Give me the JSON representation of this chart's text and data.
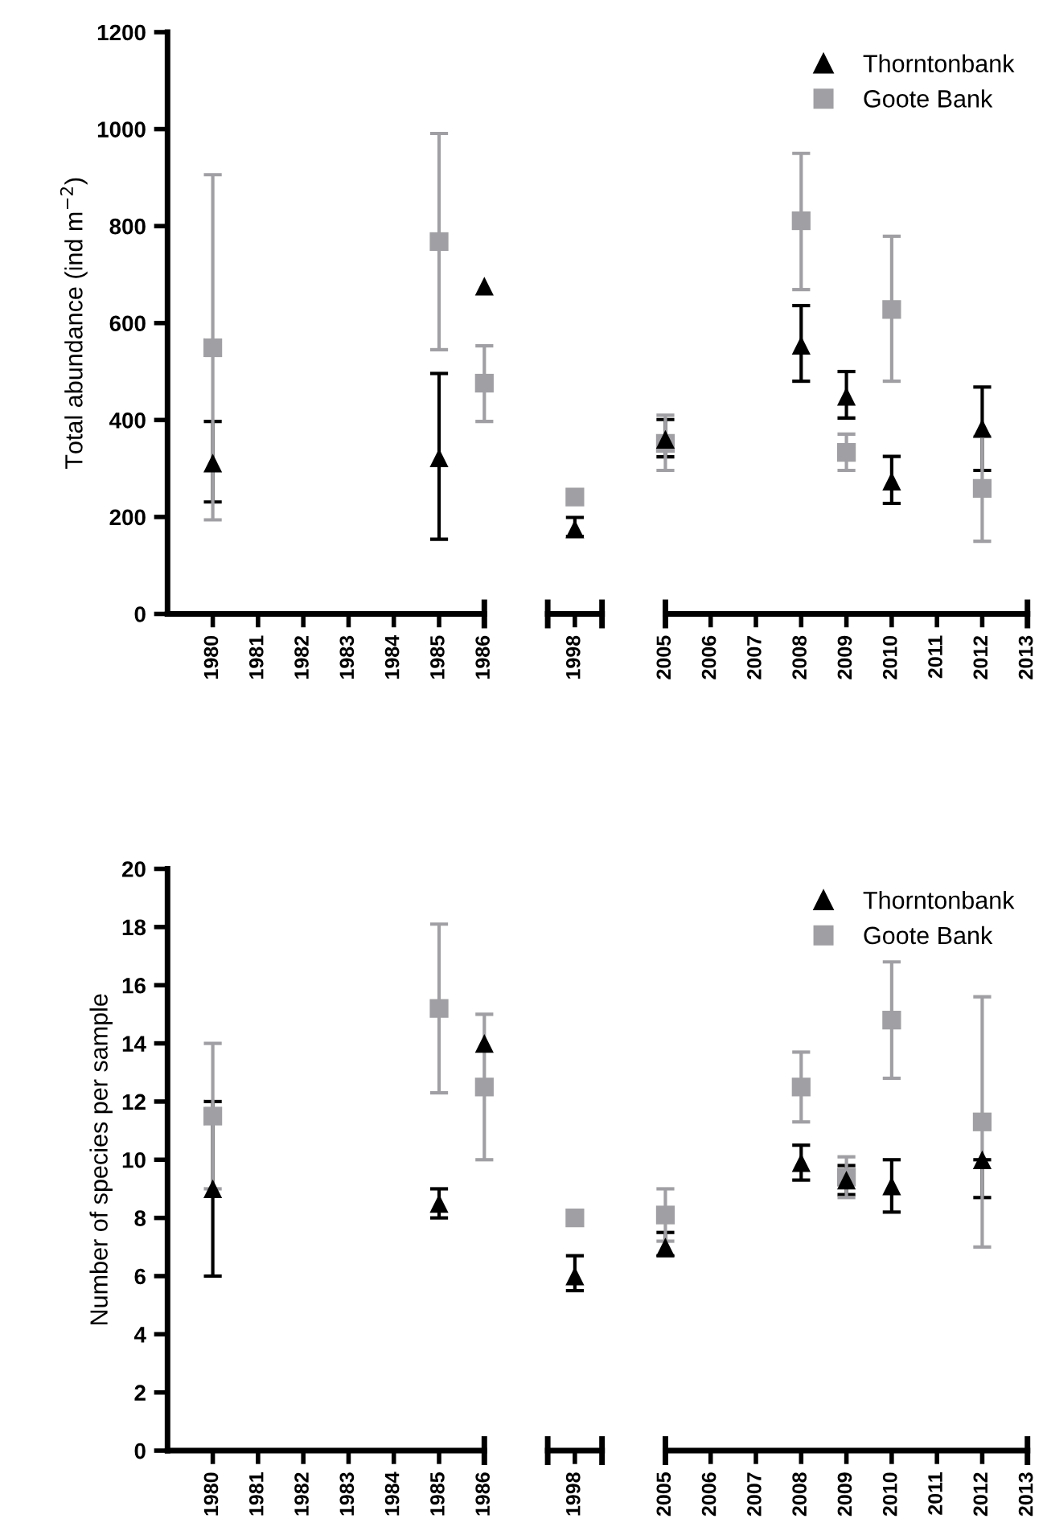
{
  "chart_data": [
    {
      "type": "scatter",
      "ylabel": "Total abundance (ind m$^{−2}$)",
      "categories": [
        "1980",
        "1981",
        "1982",
        "1983",
        "1984",
        "1985",
        "1986",
        null,
        "1998",
        null,
        "2005",
        "2006",
        "2007",
        "2008",
        "2009",
        "2010",
        "2011",
        "2012",
        "2013"
      ],
      "ylim": [
        0,
        1200
      ],
      "yticks": [
        0,
        200,
        400,
        600,
        800,
        1000,
        1200
      ],
      "legend": "top right",
      "series": [
        {
          "name": "Thorntonbank",
          "color": "#000000",
          "marker": "triangle",
          "values": [
            311,
            null,
            null,
            null,
            null,
            322,
            676,
            null,
            175,
            null,
            360,
            null,
            null,
            554,
            449,
            274,
            null,
            383,
            null
          ],
          "errors": [
            [
              231,
              397
            ],
            null,
            null,
            null,
            null,
            [
              154,
              496
            ],
            null,
            null,
            [
              160,
              199
            ],
            null,
            [
              324,
              401
            ],
            null,
            null,
            [
              480,
              636
            ],
            [
              404,
              500
            ],
            [
              228,
              325
            ],
            null,
            [
              296,
              468
            ],
            null
          ]
        },
        {
          "name": "Goote Bank",
          "color": "#a0a0a4",
          "marker": "square",
          "values": [
            549,
            null,
            null,
            null,
            null,
            768,
            476,
            null,
            241,
            null,
            352,
            null,
            null,
            811,
            333,
            628,
            null,
            259,
            null
          ],
          "errors": [
            [
              194,
              906
            ],
            null,
            null,
            null,
            null,
            [
              545,
              991
            ],
            [
              397,
              553
            ],
            null,
            null,
            null,
            [
              296,
              410
            ],
            null,
            null,
            [
              669,
              950
            ],
            [
              296,
              371
            ],
            [
              480,
              779
            ],
            null,
            [
              150,
              366
            ],
            null
          ]
        }
      ]
    },
    {
      "type": "scatter",
      "ylabel": "Number of species per sample",
      "categories": [
        "1980",
        "1981",
        "1982",
        "1983",
        "1984",
        "1985",
        "1986",
        null,
        "1998",
        null,
        "2005",
        "2006",
        "2007",
        "2008",
        "2009",
        "2010",
        "2011",
        "2012",
        "2013"
      ],
      "ylim": [
        0,
        20
      ],
      "yticks": [
        0,
        2,
        4,
        6,
        8,
        10,
        12,
        14,
        16,
        18,
        20
      ],
      "legend": "top right",
      "series": [
        {
          "name": "Thorntonbank",
          "color": "#000000",
          "marker": "triangle",
          "values": [
            9.0,
            null,
            null,
            null,
            null,
            8.5,
            14.0,
            null,
            6.0,
            null,
            7.0,
            null,
            null,
            9.9,
            9.3,
            9.1,
            null,
            10.0,
            null
          ],
          "errors": [
            [
              6.0,
              12.0
            ],
            null,
            null,
            null,
            null,
            [
              8.0,
              9.0
            ],
            null,
            null,
            [
              5.5,
              6.7
            ],
            null,
            [
              6.7,
              7.5
            ],
            null,
            null,
            [
              9.3,
              10.5
            ],
            [
              8.8,
              9.8
            ],
            [
              8.2,
              10.0
            ],
            null,
            [
              8.7,
              10.0
            ],
            null
          ]
        },
        {
          "name": "Goote Bank",
          "color": "#a0a0a4",
          "marker": "square",
          "values": [
            11.5,
            null,
            null,
            null,
            null,
            15.2,
            12.5,
            null,
            8.0,
            null,
            8.1,
            null,
            null,
            12.5,
            9.4,
            14.8,
            null,
            11.3,
            null
          ],
          "errors": [
            [
              9.0,
              14.0
            ],
            null,
            null,
            null,
            null,
            [
              12.3,
              18.1
            ],
            [
              10.0,
              15.0
            ],
            null,
            null,
            null,
            [
              7.2,
              9.0
            ],
            null,
            null,
            [
              11.3,
              13.7
            ],
            [
              8.7,
              10.1
            ],
            [
              12.8,
              16.8
            ],
            null,
            [
              7.0,
              15.6
            ],
            null
          ]
        }
      ]
    }
  ]
}
